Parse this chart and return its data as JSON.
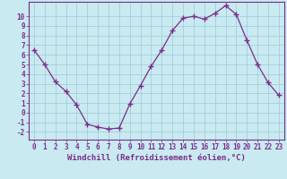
{
  "x": [
    0,
    1,
    2,
    3,
    4,
    5,
    6,
    7,
    8,
    9,
    10,
    11,
    12,
    13,
    14,
    15,
    16,
    17,
    18,
    19,
    20,
    21,
    22,
    23
  ],
  "y": [
    6.5,
    5.0,
    3.2,
    2.2,
    0.8,
    -1.2,
    -1.5,
    -1.7,
    -1.6,
    0.9,
    2.8,
    4.8,
    6.5,
    8.5,
    9.8,
    10.0,
    9.7,
    10.3,
    11.1,
    10.2,
    7.5,
    5.0,
    3.1,
    1.8
  ],
  "line_color": "#7b2d8b",
  "marker": "+",
  "marker_size": 4,
  "marker_linewidth": 1.0,
  "bg_color": "#c8eaf0",
  "grid_color": "#a0c8d8",
  "xlabel": "Windchill (Refroidissement éolien,°C)",
  "ylabel": "",
  "xlim": [
    -0.5,
    23.5
  ],
  "ylim": [
    -2.8,
    11.5
  ],
  "yticks": [
    -2,
    -1,
    0,
    1,
    2,
    3,
    4,
    5,
    6,
    7,
    8,
    9,
    10
  ],
  "xticks": [
    0,
    1,
    2,
    3,
    4,
    5,
    6,
    7,
    8,
    9,
    10,
    11,
    12,
    13,
    14,
    15,
    16,
    17,
    18,
    19,
    20,
    21,
    22,
    23
  ],
  "tick_fontsize": 5.5,
  "xlabel_fontsize": 6.5,
  "axis_color": "#7b2d8b",
  "line_width": 0.9
}
